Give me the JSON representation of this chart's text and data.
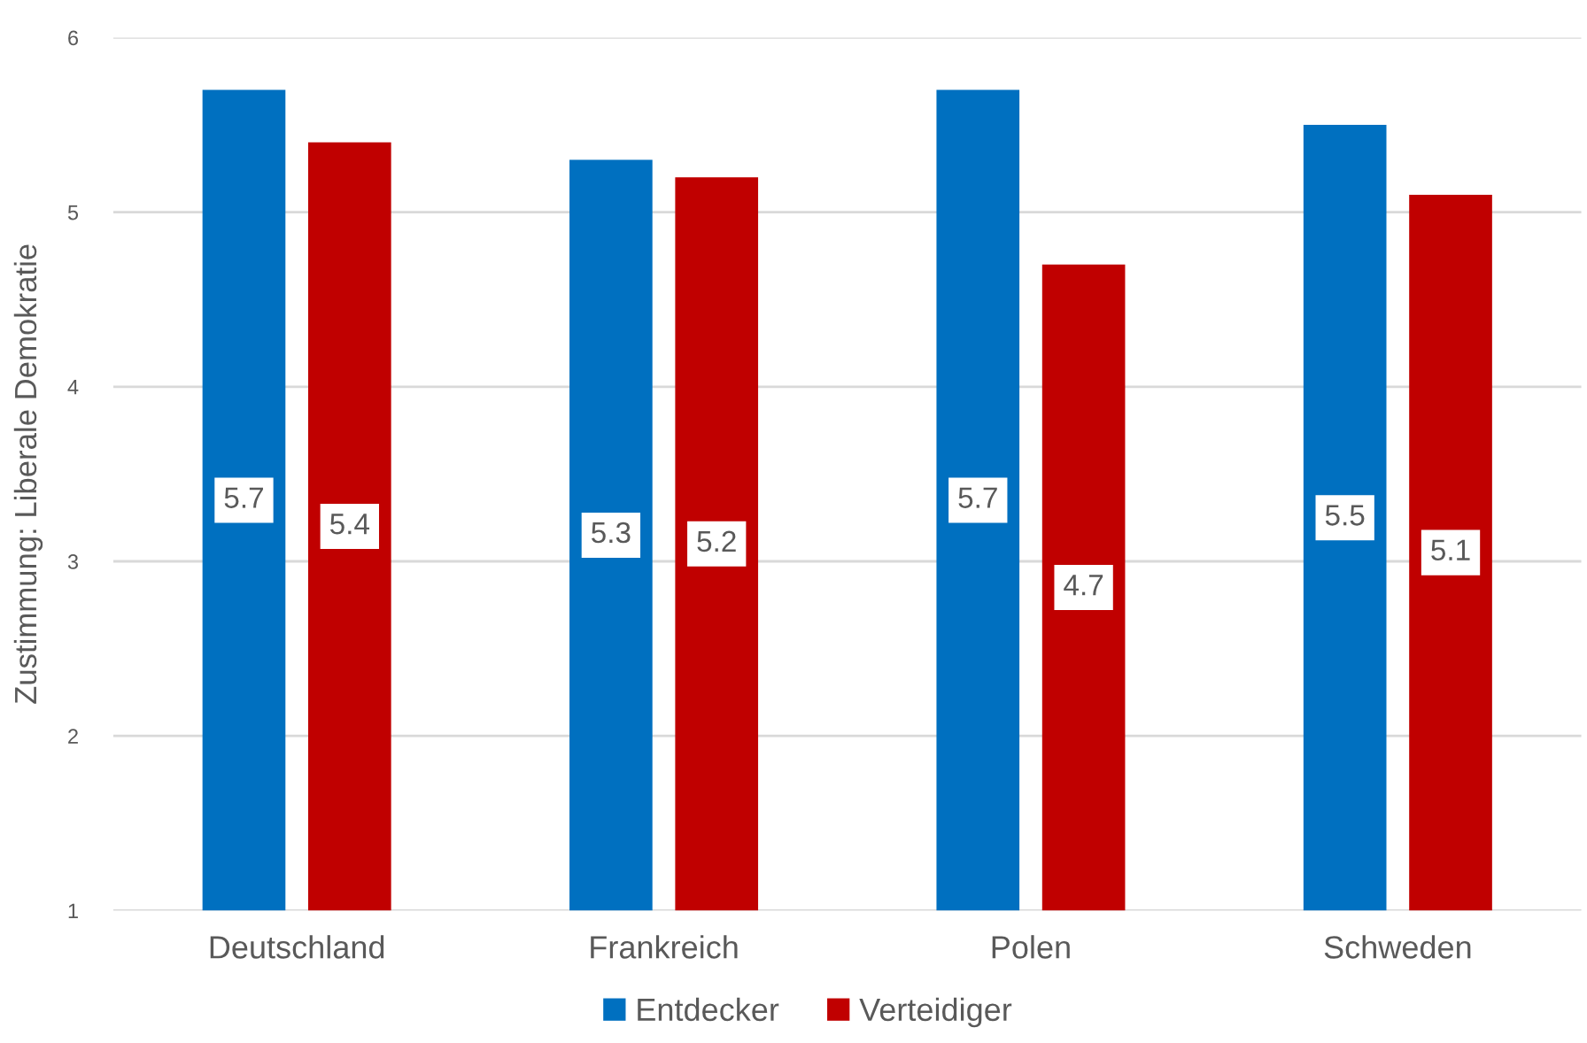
{
  "chart_data": {
    "type": "bar",
    "ylabel": "Zustimmung: Liberale Demokratie",
    "categories": [
      "Deutschland",
      "Frankreich",
      "Polen",
      "Schweden"
    ],
    "series": [
      {
        "name": "Entdecker",
        "color": "#0070c0",
        "values": [
          5.7,
          5.3,
          5.7,
          5.5
        ]
      },
      {
        "name": "Verteidiger",
        "color": "#c00000",
        "values": [
          5.4,
          5.2,
          4.7,
          5.1
        ]
      }
    ],
    "ylim": [
      1,
      6
    ],
    "yticks": [
      1,
      2,
      3,
      4,
      5,
      6
    ],
    "grid": "y",
    "legend": "bottom",
    "data_labels": true
  }
}
